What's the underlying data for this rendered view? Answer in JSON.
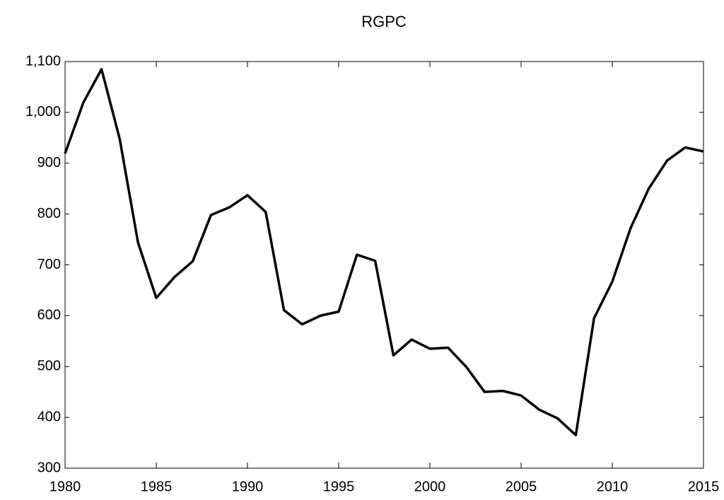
{
  "chart_data": {
    "type": "line",
    "title": "RGPC",
    "x": [
      1980,
      1981,
      1982,
      1983,
      1984,
      1985,
      1986,
      1987,
      1988,
      1989,
      1990,
      1991,
      1992,
      1993,
      1994,
      1995,
      1996,
      1997,
      1998,
      1999,
      2000,
      2001,
      2002,
      2003,
      2004,
      2005,
      2006,
      2007,
      2008,
      2009,
      2010,
      2011,
      2012,
      2013,
      2014,
      2015
    ],
    "series": [
      {
        "name": "RGPC",
        "color": "#000000",
        "values": [
          919,
          1019,
          1085,
          947,
          744,
          635,
          676,
          707,
          798,
          813,
          837,
          804,
          611,
          583,
          600,
          608,
          720,
          708,
          522,
          553,
          535,
          537,
          499,
          450,
          452,
          443,
          415,
          398,
          365,
          595,
          667,
          772,
          850,
          905,
          931,
          923
        ]
      }
    ],
    "xlim": [
      1980,
      2015
    ],
    "xticks": [
      1980,
      1985,
      1990,
      1995,
      2000,
      2005,
      2010,
      2015
    ],
    "ylim": [
      300,
      1100
    ],
    "yticks": [
      300,
      400,
      500,
      600,
      700,
      800,
      900,
      {
        "value": 1000,
        "label": "1,000"
      },
      {
        "value": 1100,
        "label": "1,100"
      }
    ],
    "grid": false
  }
}
